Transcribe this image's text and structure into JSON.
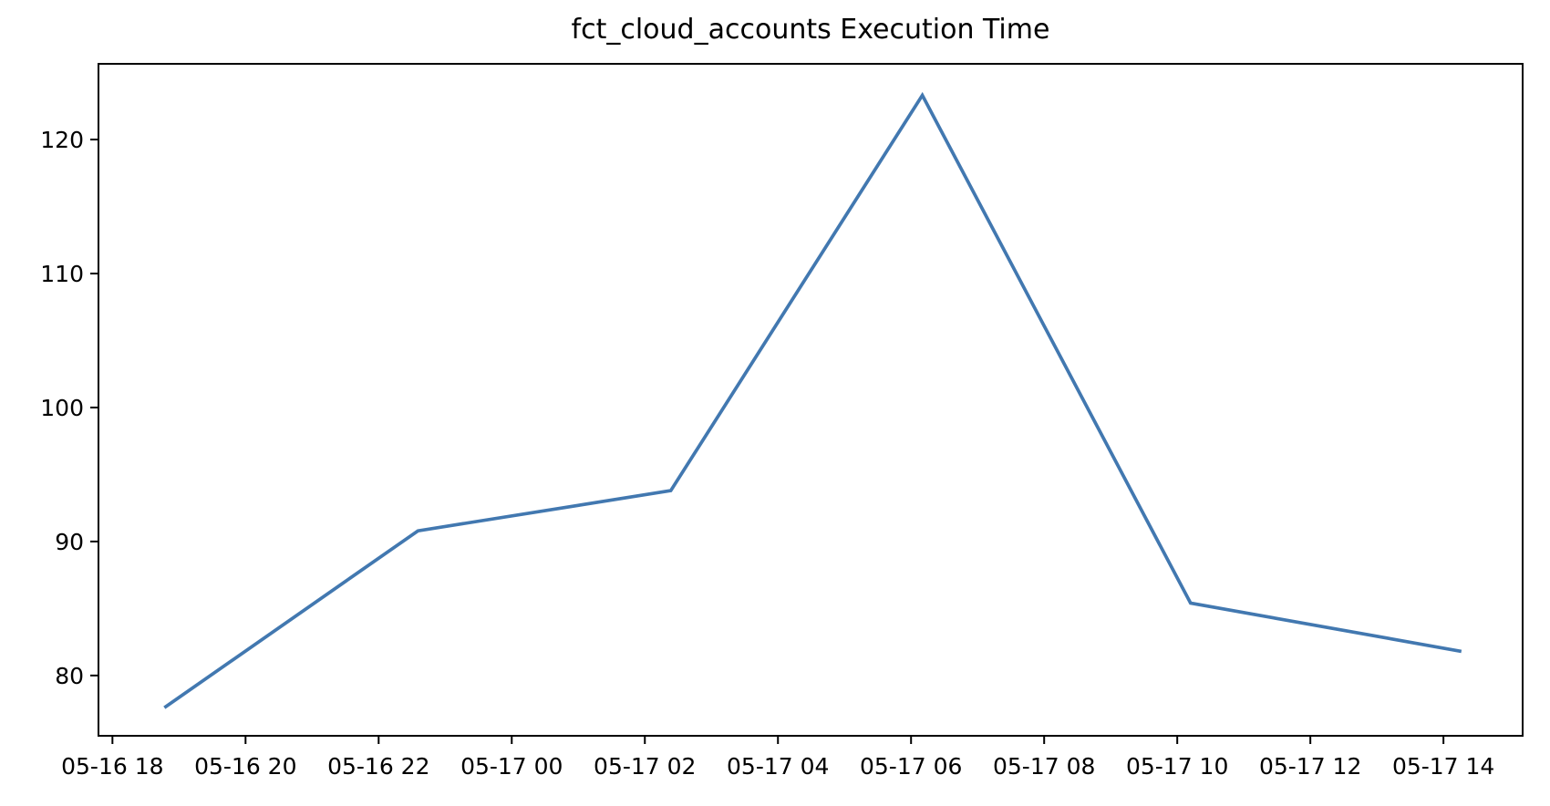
{
  "chart_data": {
    "type": "line",
    "title": "fct_cloud_accounts Execution Time",
    "xlabel": "",
    "ylabel": "",
    "grid": false,
    "legend": null,
    "background_color": "#ffffff",
    "axis_color": "#000000",
    "line_color": "#4278b0",
    "x_axis": {
      "tick_labels": [
        "05-16 18",
        "05-16 20",
        "05-16 22",
        "05-17 00",
        "05-17 02",
        "05-17 04",
        "05-17 06",
        "05-17 08",
        "05-17 10",
        "05-17 12",
        "05-17 14"
      ],
      "tick_hours": [
        0,
        2,
        4,
        6,
        8,
        10,
        12,
        14,
        16,
        18,
        20
      ],
      "xlim_hours": [
        -0.21,
        21.19
      ]
    },
    "y_axis": {
      "tick_labels": [
        "80",
        "90",
        "100",
        "110",
        "120"
      ],
      "tick_values": [
        80,
        90,
        100,
        110,
        120
      ],
      "ylim": [
        75.5,
        125.65
      ]
    },
    "series": [
      {
        "name": "fct_cloud_accounts",
        "points": [
          {
            "time": "05-16 18:47",
            "hour_offset": 0.78,
            "value": 77.6
          },
          {
            "time": "05-16 22:35",
            "hour_offset": 4.59,
            "value": 90.8
          },
          {
            "time": "05-17 02:24",
            "hour_offset": 8.39,
            "value": 93.8
          },
          {
            "time": "05-17 06:10",
            "hour_offset": 12.17,
            "value": 123.3
          },
          {
            "time": "05-17 10:12",
            "hour_offset": 16.2,
            "value": 85.4
          },
          {
            "time": "05-17 14:16",
            "hour_offset": 20.27,
            "value": 81.8
          }
        ]
      }
    ]
  }
}
